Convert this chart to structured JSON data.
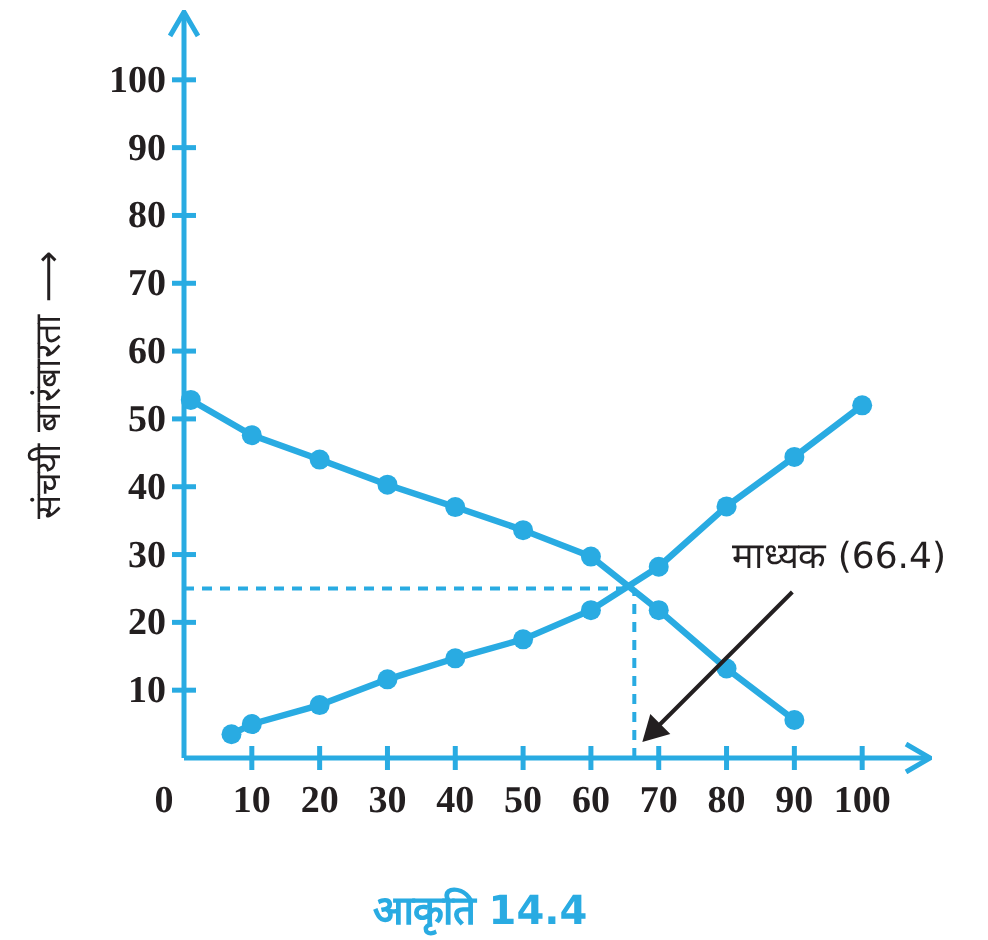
{
  "chart_data": {
    "type": "line",
    "title": "आकृति 14.4",
    "ylabel": "संचयी बारंबारता ⟶",
    "xlim": [
      0,
      110
    ],
    "ylim": [
      0,
      110
    ],
    "xticks": [
      0,
      10,
      20,
      30,
      40,
      50,
      60,
      70,
      80,
      90,
      100
    ],
    "yticks": [
      10,
      20,
      30,
      40,
      50,
      60,
      70,
      80,
      90,
      100
    ],
    "marker": "circle",
    "line_style": "solid",
    "grid": false,
    "series": [
      {
        "color": "#29abe2",
        "x": [
          7,
          10,
          20,
          30,
          40,
          50,
          60,
          70,
          80,
          90,
          100
        ],
        "values": [
          3.5,
          5,
          7.8,
          11.6,
          14.7,
          17.5,
          21.8,
          28.2,
          37.1,
          44.4,
          52
        ]
      },
      {
        "color": "#29abe2",
        "x": [
          1,
          10,
          20,
          30,
          40,
          50,
          60,
          70,
          80,
          90
        ],
        "values": [
          52.8,
          47.6,
          44,
          40.3,
          37,
          33.6,
          29.7,
          21.8,
          13.2,
          5.6
        ]
      }
    ],
    "ref_lines": [
      {
        "axis": "y",
        "value": 25,
        "color": "#29abe2",
        "line_style": "dashed"
      },
      {
        "axis": "x",
        "value": 66.4,
        "color": "#29abe2",
        "line_style": "dashed"
      }
    ],
    "annotations": [
      "माध्यक (66.4)"
    ]
  }
}
